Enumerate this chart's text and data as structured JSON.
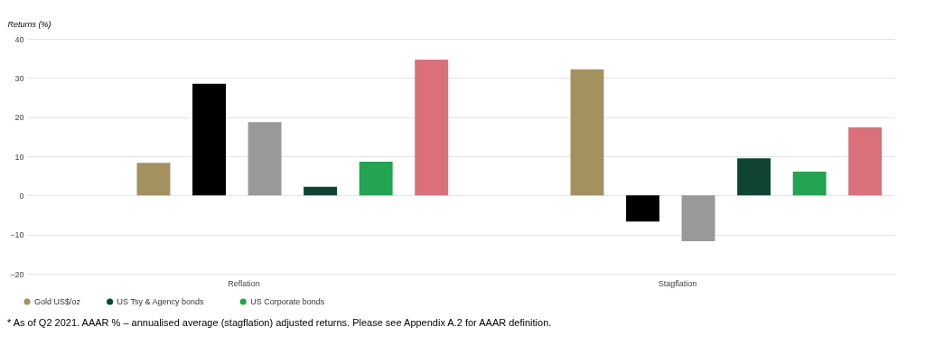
{
  "chart_data": {
    "type": "bar",
    "ylabel": "Returns (%)",
    "categories": [
      "Reflation",
      "Stagflation"
    ],
    "series": [
      {
        "name": "Gold US$/oz",
        "color": "#a39160",
        "values": [
          8.3,
          32.2
        ]
      },
      {
        "color": "#000000",
        "values": [
          28.5,
          -6.7
        ]
      },
      {
        "color": "#999999",
        "values": [
          18.7,
          -11.7
        ]
      },
      {
        "name": "US Tsy & Agency bonds",
        "color": "#0f4535",
        "values": [
          2.2,
          9.5
        ]
      },
      {
        "name": "US Corporate bonds",
        "color": "#22a452",
        "values": [
          8.6,
          6.1
        ]
      },
      {
        "color": "#d9707a",
        "values": [
          34.7,
          17.4
        ]
      }
    ],
    "ylim": [
      -20,
      40
    ],
    "yticks": [
      -20,
      -10,
      0,
      10,
      20,
      30,
      40
    ],
    "grid": "y",
    "legend": "bottom left",
    "annotations": [
      "* As of Q2 2021. AAAR % – annualised average (stagflation) adjusted returns. Please see Appendix A.2 for AAAR definition."
    ]
  }
}
